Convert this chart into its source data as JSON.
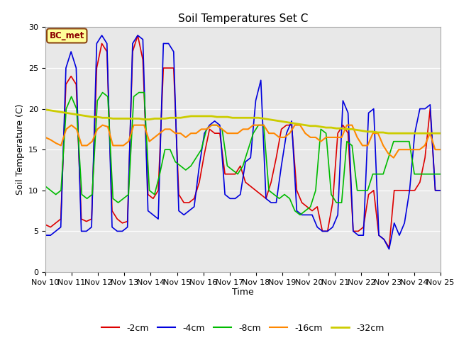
{
  "title": "Soil Temperatures Set C",
  "xlabel": "Time",
  "ylabel": "Soil Temperature (C)",
  "ylim": [
    0,
    30
  ],
  "x_tick_labels": [
    "Nov 10",
    "Nov 11",
    "Nov 12",
    "Nov 13",
    "Nov 14",
    "Nov 15",
    "Nov 16",
    "Nov 17",
    "Nov 18",
    "Nov 19",
    "Nov 20",
    "Nov 21",
    "Nov 22",
    "Nov 23",
    "Nov 24",
    "Nov 25"
  ],
  "fig_bg_color": "#ffffff",
  "plot_bg_color": "#e8e8e8",
  "annotation_text": "BC_met",
  "annotation_bg": "#ffff99",
  "annotation_border": "#8b4513",
  "series": {
    "-2cm": {
      "color": "#dd0000",
      "lw": 1.2
    },
    "-4cm": {
      "color": "#0000dd",
      "lw": 1.2
    },
    "-8cm": {
      "color": "#00bb00",
      "lw": 1.2
    },
    "-16cm": {
      "color": "#ff8800",
      "lw": 1.5
    },
    "-32cm": {
      "color": "#cccc00",
      "lw": 2.0
    }
  },
  "data_2cm": [
    5.8,
    5.5,
    6.0,
    6.5,
    23,
    24,
    23,
    6.5,
    6.2,
    6.5,
    25,
    28,
    27,
    7.5,
    6.5,
    6.0,
    6.2,
    27,
    29,
    26,
    9.5,
    9.0,
    10,
    25,
    25,
    25,
    9.5,
    8.5,
    8.5,
    9.0,
    11,
    14.5,
    17.5,
    17,
    17,
    12,
    12,
    12,
    13,
    11,
    10.5,
    10,
    9.5,
    9.0,
    11,
    14,
    17.5,
    18,
    18,
    10,
    8.5,
    8.0,
    7.5,
    8.0,
    5.0,
    5.0,
    8.5,
    17,
    18,
    17,
    5.0,
    5.0,
    5.5,
    9.5,
    10,
    4.5,
    4.0,
    3.0,
    10,
    10,
    10,
    10,
    10,
    11,
    14,
    20,
    10,
    10
  ],
  "data_4cm": [
    4.5,
    4.5,
    5.0,
    5.5,
    25,
    27,
    25,
    5.0,
    5.0,
    5.5,
    28,
    29,
    28,
    5.5,
    5.0,
    5.0,
    5.5,
    28,
    29,
    28.5,
    7.5,
    7.0,
    6.5,
    28,
    28,
    27,
    7.5,
    7.0,
    7.5,
    8.0,
    13,
    17,
    18,
    18.5,
    18,
    9.5,
    9.0,
    9.0,
    9.5,
    13.5,
    14,
    21,
    23.5,
    9.0,
    8.5,
    8.5,
    13,
    17,
    18.5,
    7.5,
    7.0,
    7.0,
    7.0,
    5.5,
    5.0,
    5.0,
    5.5,
    7.0,
    21,
    19.5,
    5.0,
    4.5,
    4.5,
    19.5,
    20,
    4.5,
    4.0,
    2.8,
    6.0,
    4.5,
    6.0,
    10,
    17,
    20,
    20,
    20.5,
    10,
    10
  ],
  "data_8cm": [
    10.5,
    10.0,
    9.5,
    10,
    20,
    21.5,
    20,
    9.5,
    9.0,
    9.5,
    21,
    22,
    21.5,
    9.0,
    8.5,
    9.0,
    9.5,
    21.5,
    22,
    22,
    10,
    9.5,
    12,
    15,
    15,
    13.5,
    13,
    12.5,
    13,
    14,
    15,
    17.5,
    18,
    18,
    17.5,
    13,
    12.5,
    12,
    13,
    15,
    17,
    18,
    18,
    10,
    9.5,
    9.0,
    9.5,
    9.0,
    7.5,
    7.0,
    7.5,
    8.0,
    10,
    17.5,
    17,
    9.5,
    8.5,
    8.5,
    16,
    15.5,
    10,
    10,
    10,
    12,
    12,
    12,
    14,
    16,
    16,
    16,
    16,
    12,
    12,
    12,
    12,
    12,
    12
  ],
  "data_16cm": [
    16.5,
    16.2,
    15.8,
    15.5,
    17.5,
    18,
    17.5,
    15.5,
    15.5,
    16,
    17.5,
    18,
    17.8,
    15.5,
    15.5,
    15.5,
    16,
    18,
    18,
    18,
    16,
    16.5,
    17,
    17.5,
    17.5,
    17,
    17,
    16.5,
    17,
    17,
    17.5,
    17.5,
    18,
    18,
    17.5,
    17,
    17,
    17,
    17.5,
    17.5,
    18,
    18,
    18,
    17,
    17,
    16.5,
    16.5,
    17,
    18,
    18,
    17,
    16.5,
    16.5,
    16,
    16.5,
    16.5,
    16.5,
    16.5,
    18,
    18,
    16.5,
    15.5,
    15.5,
    17,
    17,
    15.5,
    14.5,
    14.0,
    15,
    15,
    15,
    15,
    15,
    15.5,
    17,
    15,
    15
  ],
  "data_32cm": [
    19.9,
    19.8,
    19.7,
    19.6,
    19.5,
    19.4,
    19.3,
    19.2,
    19.1,
    19.0,
    19.0,
    18.9,
    18.9,
    18.8,
    18.8,
    18.8,
    18.8,
    18.8,
    18.8,
    18.7,
    18.7,
    18.8,
    18.8,
    18.8,
    18.9,
    18.9,
    18.9,
    19.0,
    19.1,
    19.1,
    19.1,
    19.1,
    19.1,
    19.0,
    19.0,
    19.0,
    18.9,
    18.9,
    18.9,
    18.9,
    18.9,
    18.9,
    18.8,
    18.7,
    18.6,
    18.5,
    18.4,
    18.3,
    18.2,
    18.1,
    18.0,
    17.9,
    17.9,
    17.8,
    17.7,
    17.7,
    17.6,
    17.6,
    17.5,
    17.5,
    17.4,
    17.3,
    17.2,
    17.2,
    17.1,
    17.1,
    17.0,
    17.0,
    17.0,
    17.0,
    17.0,
    17.0,
    17.0,
    17.0,
    17.0,
    17.0,
    17.0
  ]
}
